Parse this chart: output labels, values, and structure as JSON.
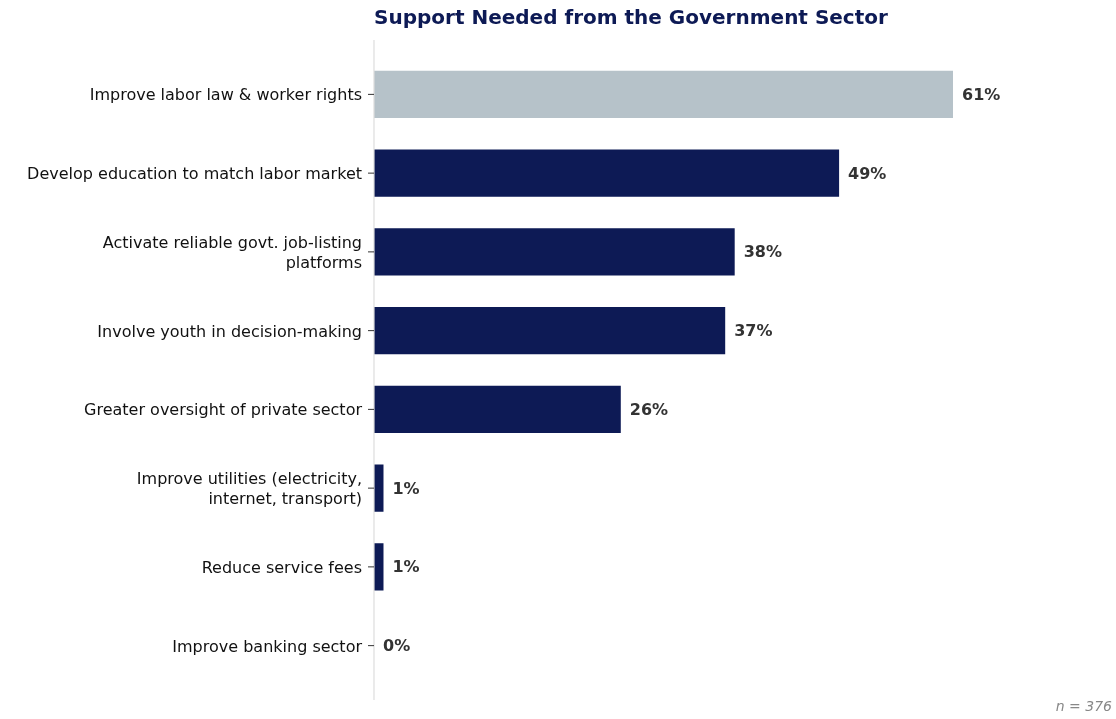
{
  "chart_data": {
    "type": "bar",
    "orientation": "horizontal",
    "title": "Support Needed from the Government Sector",
    "categories": [
      "Improve labor law & worker rights",
      "Develop education to match labor market",
      "Activate reliable govt. job-listing\nplatforms",
      "Involve youth in decision-making",
      "Greater oversight of private sector",
      "Improve utilities (electricity,\ninternet, transport)",
      "Reduce service fees",
      "Improve banking sector"
    ],
    "values": [
      61,
      49,
      38,
      37,
      26,
      1,
      1,
      0
    ],
    "value_labels": [
      "61%",
      "49%",
      "38%",
      "37%",
      "26%",
      "1%",
      "1%",
      "0%"
    ],
    "colors": [
      "#b6c2c9",
      "#0d1a55",
      "#0d1a55",
      "#0d1a55",
      "#0d1a55",
      "#0d1a55",
      "#0d1a55",
      "#0d1a55"
    ],
    "tick_labels": "y",
    "annotations": [
      "n = 376"
    ]
  }
}
